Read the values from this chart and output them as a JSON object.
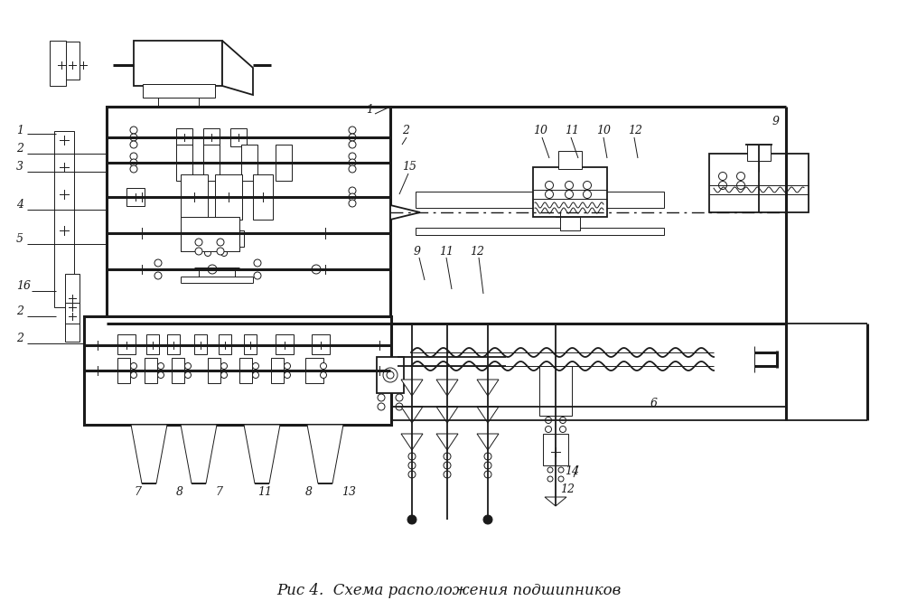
{
  "title": "Рис 4.  Схема расположения подшипников",
  "bg_color": "#ffffff",
  "line_color": "#1a1a1a",
  "title_fontsize": 12,
  "figsize": [
    9.95,
    6.75
  ],
  "dpi": 100
}
